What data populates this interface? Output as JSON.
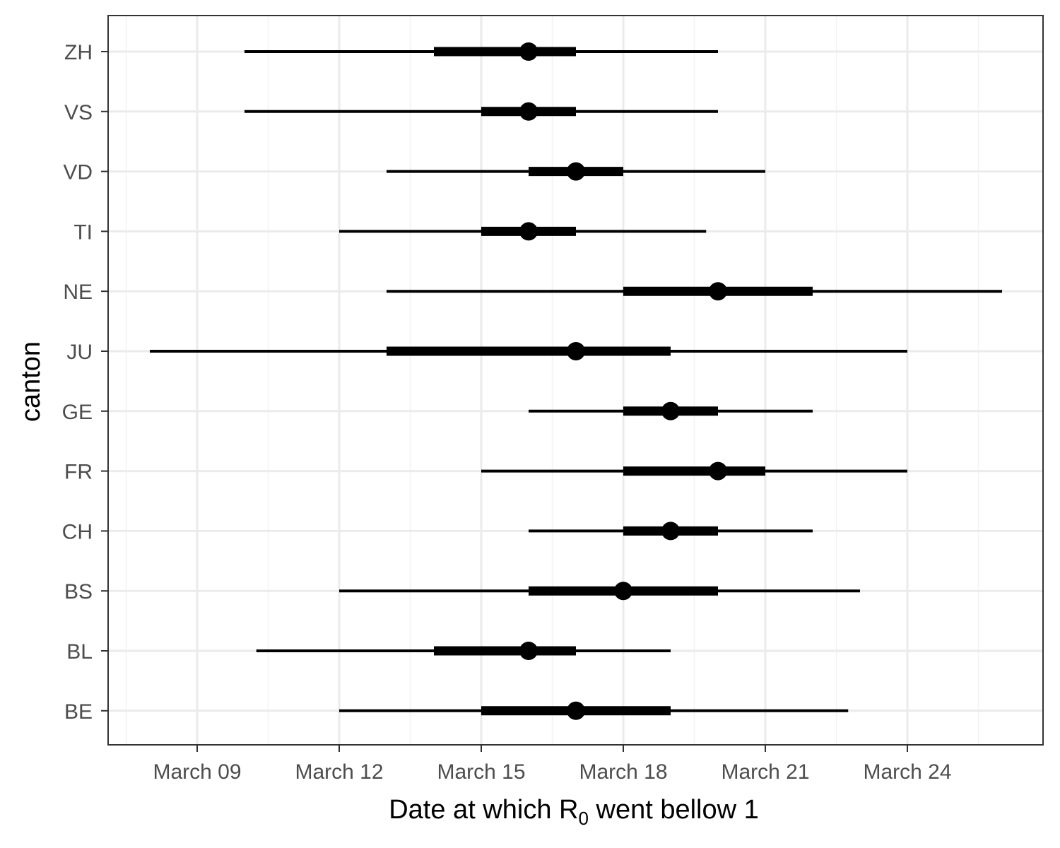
{
  "chart_data": {
    "type": "forest",
    "title": "",
    "xlabel": "Date at which R",
    "xlabel_sub": "0",
    "xlabel_tail": " went bellow 1",
    "ylabel": "canton",
    "xlim": [
      "2020-03-06",
      "2020-03-27"
    ],
    "x_ticks": [
      {
        "date": "2020-03-09",
        "label": "March 09"
      },
      {
        "date": "2020-03-12",
        "label": "March 12"
      },
      {
        "date": "2020-03-15",
        "label": "March 15"
      },
      {
        "date": "2020-03-18",
        "label": "March 18"
      },
      {
        "date": "2020-03-21",
        "label": "March 21"
      },
      {
        "date": "2020-03-24",
        "label": "March 24"
      }
    ],
    "x_minor_grid": [
      "2020-03-07T12:00",
      "2020-03-10T12:00",
      "2020-03-13T12:00",
      "2020-03-16T12:00",
      "2020-03-19T12:00",
      "2020-03-22T12:00",
      "2020-03-25T12:00"
    ],
    "grid": true,
    "colors": {
      "marks": "#000000",
      "grid": "#ebebeb",
      "panel_border": "#333333",
      "tick_text": "#4d4d4d"
    },
    "categories": [
      "ZH",
      "VS",
      "VD",
      "TI",
      "NE",
      "JU",
      "GE",
      "FR",
      "CH",
      "BS",
      "BL",
      "BE"
    ],
    "points": [
      {
        "canton": "ZH",
        "median": "2020-03-16",
        "inner": [
          "2020-03-14",
          "2020-03-17"
        ],
        "outer": [
          "2020-03-10",
          "2020-03-20"
        ]
      },
      {
        "canton": "VS",
        "median": "2020-03-16",
        "inner": [
          "2020-03-15",
          "2020-03-17"
        ],
        "outer": [
          "2020-03-10",
          "2020-03-20"
        ]
      },
      {
        "canton": "VD",
        "median": "2020-03-17",
        "inner": [
          "2020-03-16",
          "2020-03-18"
        ],
        "outer": [
          "2020-03-13",
          "2020-03-21"
        ]
      },
      {
        "canton": "TI",
        "median": "2020-03-16",
        "inner": [
          "2020-03-15",
          "2020-03-17"
        ],
        "outer": [
          "2020-03-12",
          "2020-03-19T18:00"
        ]
      },
      {
        "canton": "NE",
        "median": "2020-03-20",
        "inner": [
          "2020-03-18",
          "2020-03-22"
        ],
        "outer": [
          "2020-03-13",
          "2020-03-26"
        ]
      },
      {
        "canton": "JU",
        "median": "2020-03-17",
        "inner": [
          "2020-03-13",
          "2020-03-19"
        ],
        "outer": [
          "2020-03-08",
          "2020-03-24"
        ]
      },
      {
        "canton": "GE",
        "median": "2020-03-19",
        "inner": [
          "2020-03-18",
          "2020-03-20"
        ],
        "outer": [
          "2020-03-16",
          "2020-03-22"
        ]
      },
      {
        "canton": "FR",
        "median": "2020-03-20",
        "inner": [
          "2020-03-18",
          "2020-03-21"
        ],
        "outer": [
          "2020-03-15",
          "2020-03-24"
        ]
      },
      {
        "canton": "CH",
        "median": "2020-03-19",
        "inner": [
          "2020-03-18",
          "2020-03-20"
        ],
        "outer": [
          "2020-03-16",
          "2020-03-22"
        ]
      },
      {
        "canton": "BS",
        "median": "2020-03-18",
        "inner": [
          "2020-03-16",
          "2020-03-20"
        ],
        "outer": [
          "2020-03-12",
          "2020-03-23"
        ]
      },
      {
        "canton": "BL",
        "median": "2020-03-16",
        "inner": [
          "2020-03-14",
          "2020-03-17"
        ],
        "outer": [
          "2020-03-10T06:00",
          "2020-03-19"
        ]
      },
      {
        "canton": "BE",
        "median": "2020-03-17",
        "inner": [
          "2020-03-15",
          "2020-03-19"
        ],
        "outer": [
          "2020-03-12",
          "2020-03-22T18:00"
        ]
      }
    ]
  }
}
